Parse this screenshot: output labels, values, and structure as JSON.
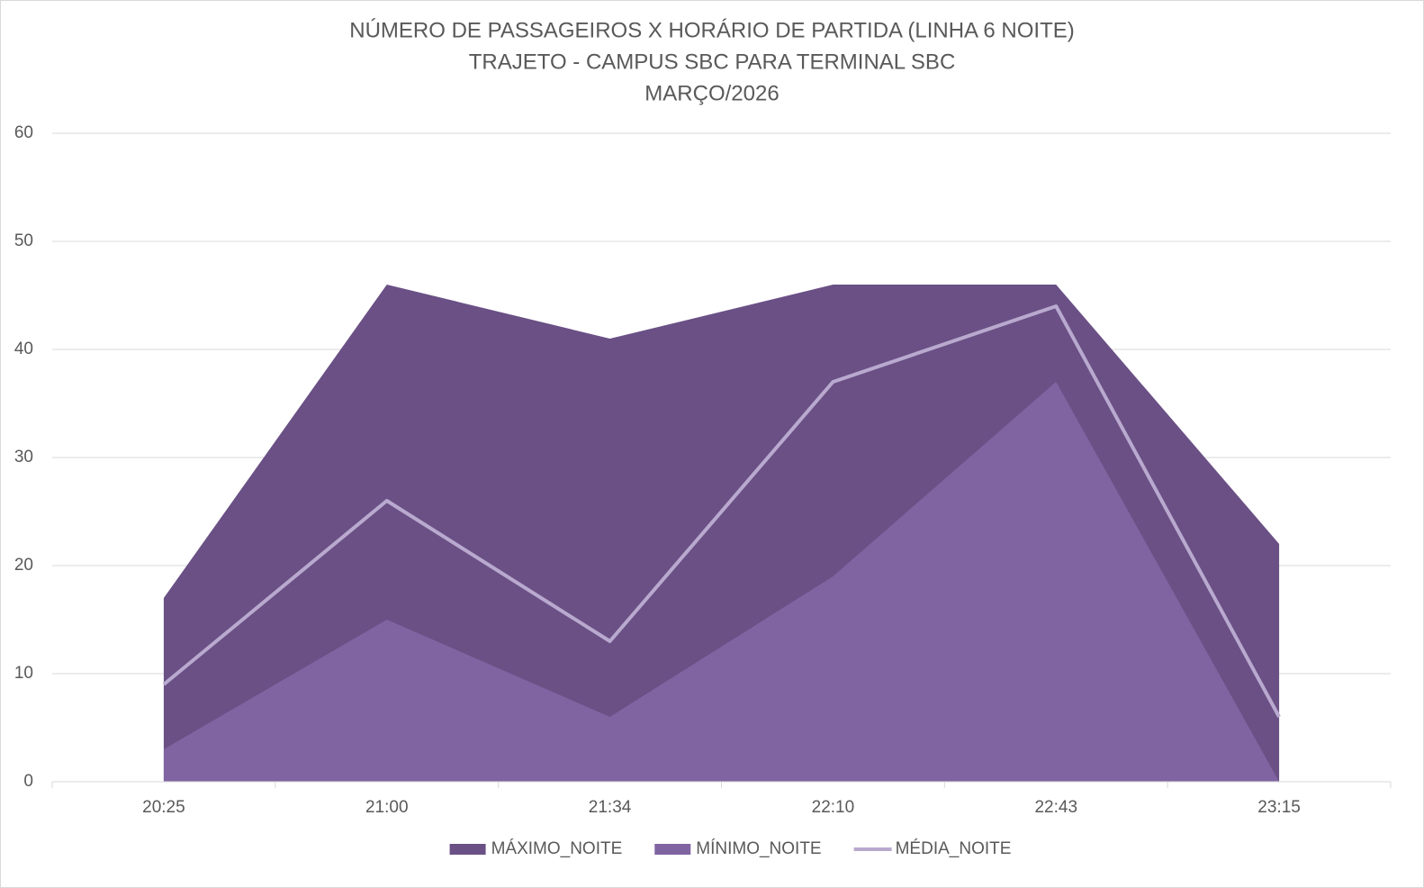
{
  "chart_data": {
    "type": "area",
    "title": [
      "NÚMERO DE PASSAGEIROS X HORÁRIO DE PARTIDA (LINHA 6 NOITE)",
      "TRAJETO - CAMPUS SBC PARA TERMINAL SBC",
      "MARÇO/2026"
    ],
    "categories": [
      "20:25",
      "21:00",
      "21:34",
      "22:10",
      "22:43",
      "23:15"
    ],
    "series": [
      {
        "name": "MÁXIMO_NOITE",
        "type": "area",
        "color": "#6a5085",
        "values": [
          17,
          46,
          41,
          46,
          46,
          22
        ]
      },
      {
        "name": "MÍNIMO_NOITE",
        "type": "area",
        "color": "#8064a2",
        "values": [
          3,
          15,
          6,
          19,
          37,
          0
        ]
      },
      {
        "name": "MÉDIA_NOITE",
        "type": "line",
        "color": "#b9a9cf",
        "values": [
          9,
          26,
          13,
          37,
          44,
          6
        ]
      }
    ],
    "ylim": [
      0,
      60
    ],
    "yticks": [
      0,
      10,
      20,
      30,
      40,
      50,
      60
    ],
    "grid": true,
    "legend": "bottom"
  }
}
